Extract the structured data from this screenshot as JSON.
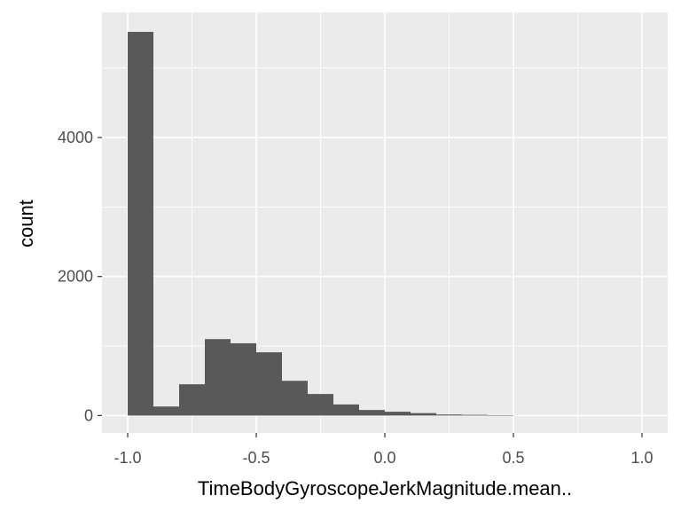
{
  "chart_data": {
    "type": "bar",
    "xlabel": "TimeBodyGyroscopeJerkMagnitude.mean..",
    "ylabel": "count",
    "xlim": [
      -1.1,
      1.1
    ],
    "ylim": [
      -250,
      5800
    ],
    "x_ticks": [
      -1.0,
      -0.5,
      0.0,
      0.5,
      1.0
    ],
    "x_tick_labels": [
      "-1.0",
      "-0.5",
      "0.0",
      "0.5",
      "1.0"
    ],
    "y_ticks": [
      0,
      2000,
      4000
    ],
    "y_tick_labels": [
      "0",
      "2000",
      "4000"
    ],
    "bin_width": 0.1,
    "bins": [
      {
        "x0": -1.0,
        "x1": -0.9,
        "count": 5520
      },
      {
        "x0": -0.9,
        "x1": -0.8,
        "count": 130
      },
      {
        "x0": -0.8,
        "x1": -0.7,
        "count": 450
      },
      {
        "x0": -0.7,
        "x1": -0.6,
        "count": 1100
      },
      {
        "x0": -0.6,
        "x1": -0.5,
        "count": 1040
      },
      {
        "x0": -0.5,
        "x1": -0.4,
        "count": 910
      },
      {
        "x0": -0.4,
        "x1": -0.3,
        "count": 500
      },
      {
        "x0": -0.3,
        "x1": -0.2,
        "count": 310
      },
      {
        "x0": -0.2,
        "x1": -0.1,
        "count": 160
      },
      {
        "x0": -0.1,
        "x1": 0.0,
        "count": 80
      },
      {
        "x0": 0.0,
        "x1": 0.1,
        "count": 55
      },
      {
        "x0": 0.1,
        "x1": 0.2,
        "count": 35
      },
      {
        "x0": 0.2,
        "x1": 0.3,
        "count": 15
      },
      {
        "x0": 0.3,
        "x1": 0.4,
        "count": 10
      },
      {
        "x0": 0.4,
        "x1": 0.5,
        "count": 5
      }
    ],
    "colors": {
      "panel": "#ebebeb",
      "grid": "#ffffff",
      "bar": "#595959",
      "tick": "#333333"
    },
    "grid": true,
    "legend": "none"
  }
}
